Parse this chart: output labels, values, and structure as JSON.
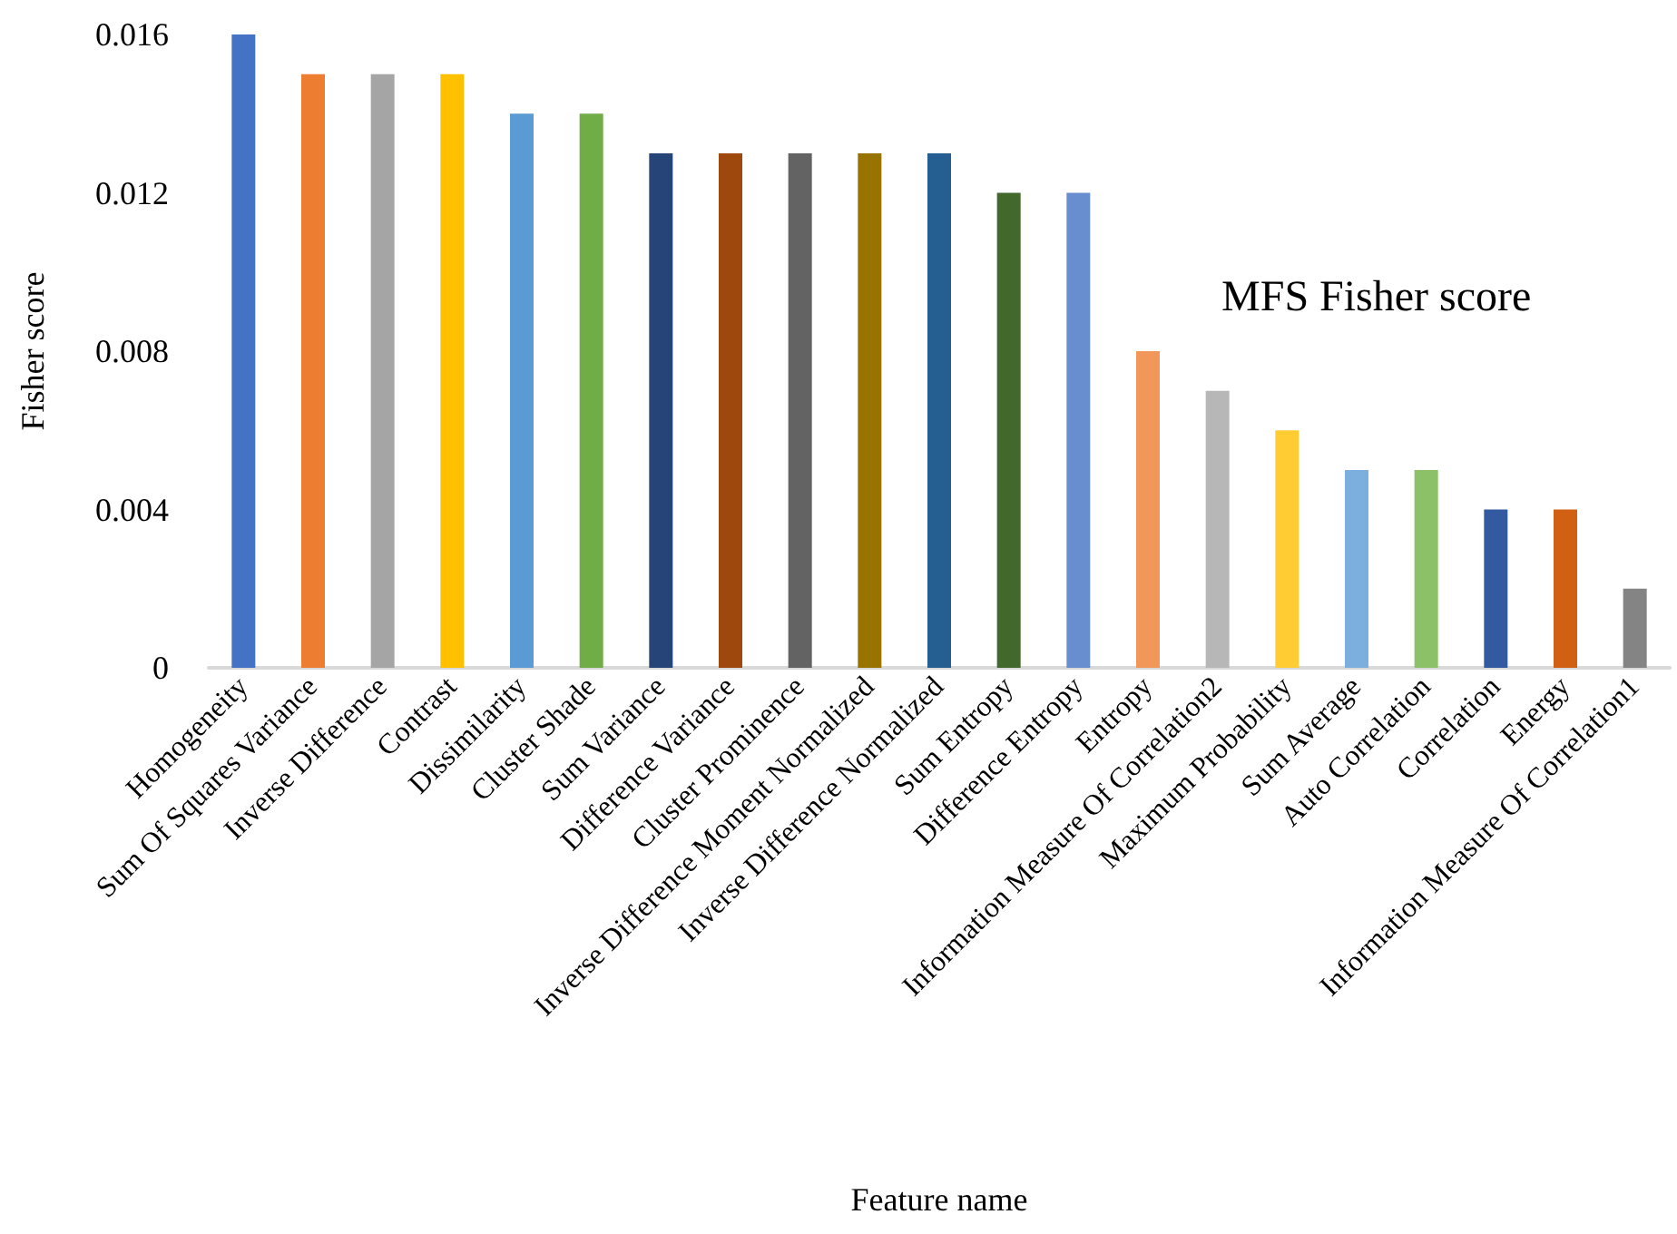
{
  "chart_data": {
    "type": "bar",
    "title": "MFS Fisher score",
    "xlabel": "Feature name",
    "ylabel": "Fisher score",
    "categories": [
      "Homogeneity",
      "Sum Of Squares Variance",
      "Inverse Difference",
      "Contrast",
      "Dissimilarity",
      "Cluster Shade",
      "Sum Variance",
      "Difference Variance",
      "Cluster Prominence",
      "Inverse Difference Moment Normalized",
      "Inverse Difference Normalized",
      "Sum Entropy",
      "Difference Entropy",
      "Entropy",
      "Information Measure Of Correlation2",
      "Maximum Probability",
      "Sum Average",
      "Auto Correlation",
      "Correlation",
      "Energy",
      "Information Measure Of Correlation1"
    ],
    "values": [
      0.016,
      0.015,
      0.015,
      0.015,
      0.014,
      0.014,
      0.013,
      0.013,
      0.013,
      0.013,
      0.013,
      0.012,
      0.012,
      0.008,
      0.007,
      0.006,
      0.005,
      0.005,
      0.004,
      0.004,
      0.002
    ],
    "colors": [
      "#4472c4",
      "#ed7d31",
      "#a5a5a5",
      "#ffc000",
      "#5b9bd5",
      "#70ad47",
      "#264478",
      "#9e480e",
      "#636363",
      "#997300",
      "#255e91",
      "#43682b",
      "#698ed0",
      "#f1975a",
      "#b7b7b7",
      "#ffcd33",
      "#7cafdd",
      "#8cc168",
      "#335aa1",
      "#d26012",
      "#848484"
    ],
    "ylim": [
      0,
      0.016
    ],
    "yticks": [
      0,
      0.004,
      0.008,
      0.012,
      0.016
    ]
  }
}
